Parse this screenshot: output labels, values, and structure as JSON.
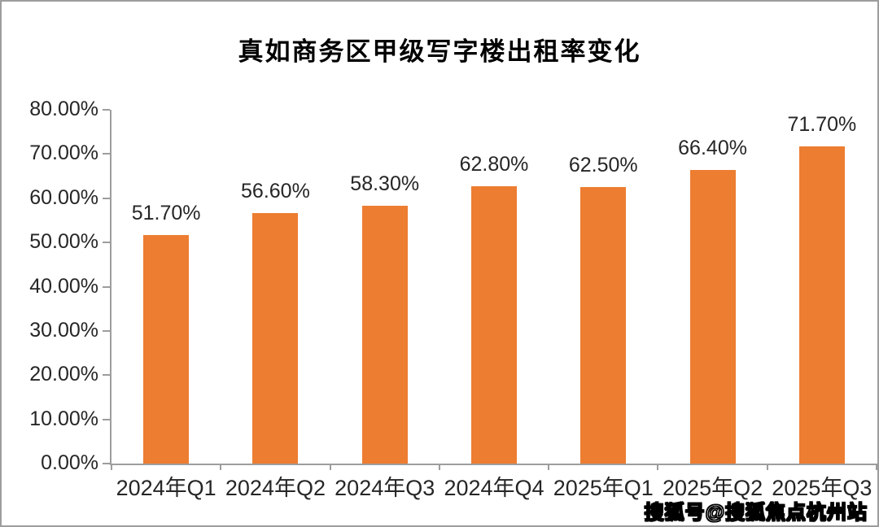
{
  "chart_data": {
    "type": "bar",
    "title": "真如商务区甲级写字楼出租率变化",
    "categories": [
      "2024年Q1",
      "2024年Q2",
      "2024年Q3",
      "2024年Q4",
      "2025年Q1",
      "2025年Q2",
      "2025年Q3"
    ],
    "values": [
      51.7,
      56.6,
      58.3,
      62.8,
      62.5,
      66.4,
      71.7
    ],
    "value_labels": [
      "51.70%",
      "56.60%",
      "58.30%",
      "62.80%",
      "62.50%",
      "66.40%",
      "71.70%"
    ],
    "y_ticks": [
      "0.00%",
      "10.00%",
      "20.00%",
      "30.00%",
      "40.00%",
      "50.00%",
      "60.00%",
      "70.00%",
      "80.00%"
    ],
    "ylim": [
      0,
      80
    ],
    "xlabel": "",
    "ylabel": "",
    "grid": false,
    "legend": "none",
    "bar_color": "#ED7D31",
    "axis_color": "#9d9d9d",
    "text_color": "#262626"
  },
  "watermark": {
    "text": "搜狐号@搜狐焦点杭州站"
  }
}
